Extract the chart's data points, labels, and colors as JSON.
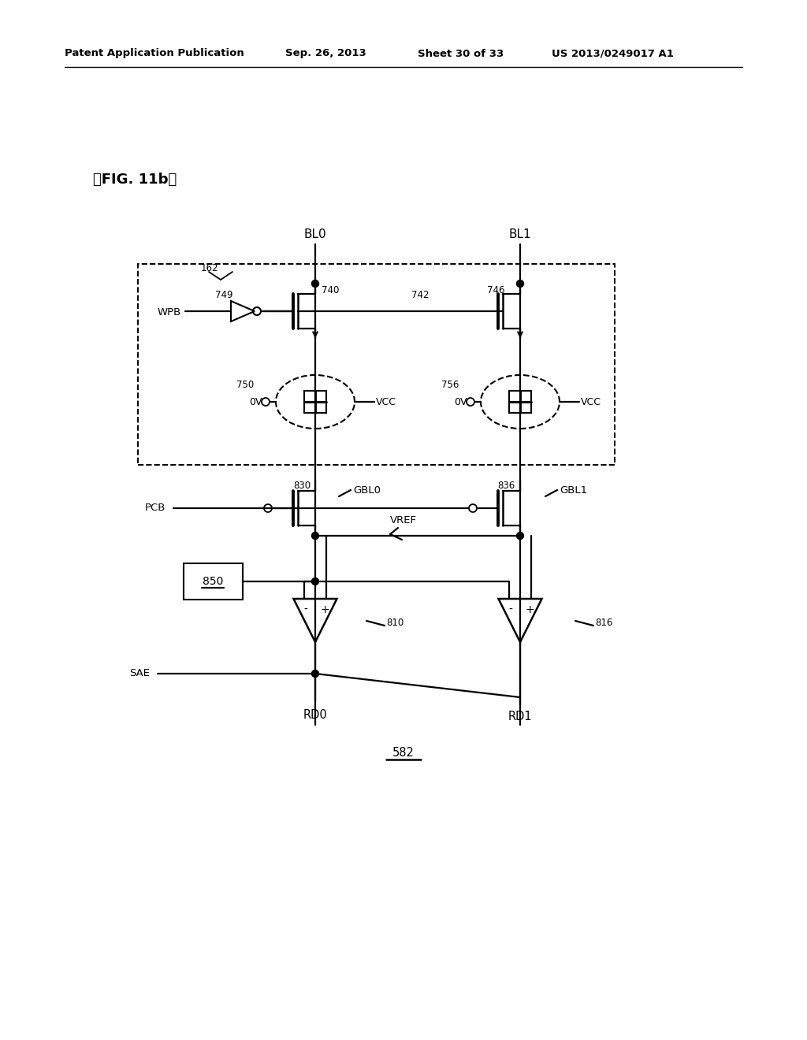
{
  "title_header": "Patent Application Publication",
  "title_date": "Sep. 26, 2013",
  "title_sheet": "Sheet 30 of 33",
  "title_patent": "US 2013/0249017 A1",
  "fig_label": "』FIG. 11b】",
  "bg_color": "#ffffff",
  "line_color": "#000000",
  "label_162": "162",
  "label_BL0": "BL0",
  "label_BL1": "BL1",
  "label_749": "749",
  "label_740": "740",
  "label_742": "742",
  "label_746": "746",
  "label_750": "750",
  "label_756": "756",
  "label_WPB": "WPB",
  "label_OV1": "0V",
  "label_VCC1": "VCC",
  "label_OV2": "0V",
  "label_VCC2": "VCC",
  "label_830": "830",
  "label_836": "836",
  "label_GBL0": "GBL0",
  "label_GBL1": "GBL1",
  "label_PCB": "PCB",
  "label_VREF": "VREF",
  "label_850": "850",
  "label_810": "810",
  "label_816": "816",
  "label_SAE": "SAE",
  "label_RD0": "RD0",
  "label_RD1": "RD1",
  "label_582": "582"
}
